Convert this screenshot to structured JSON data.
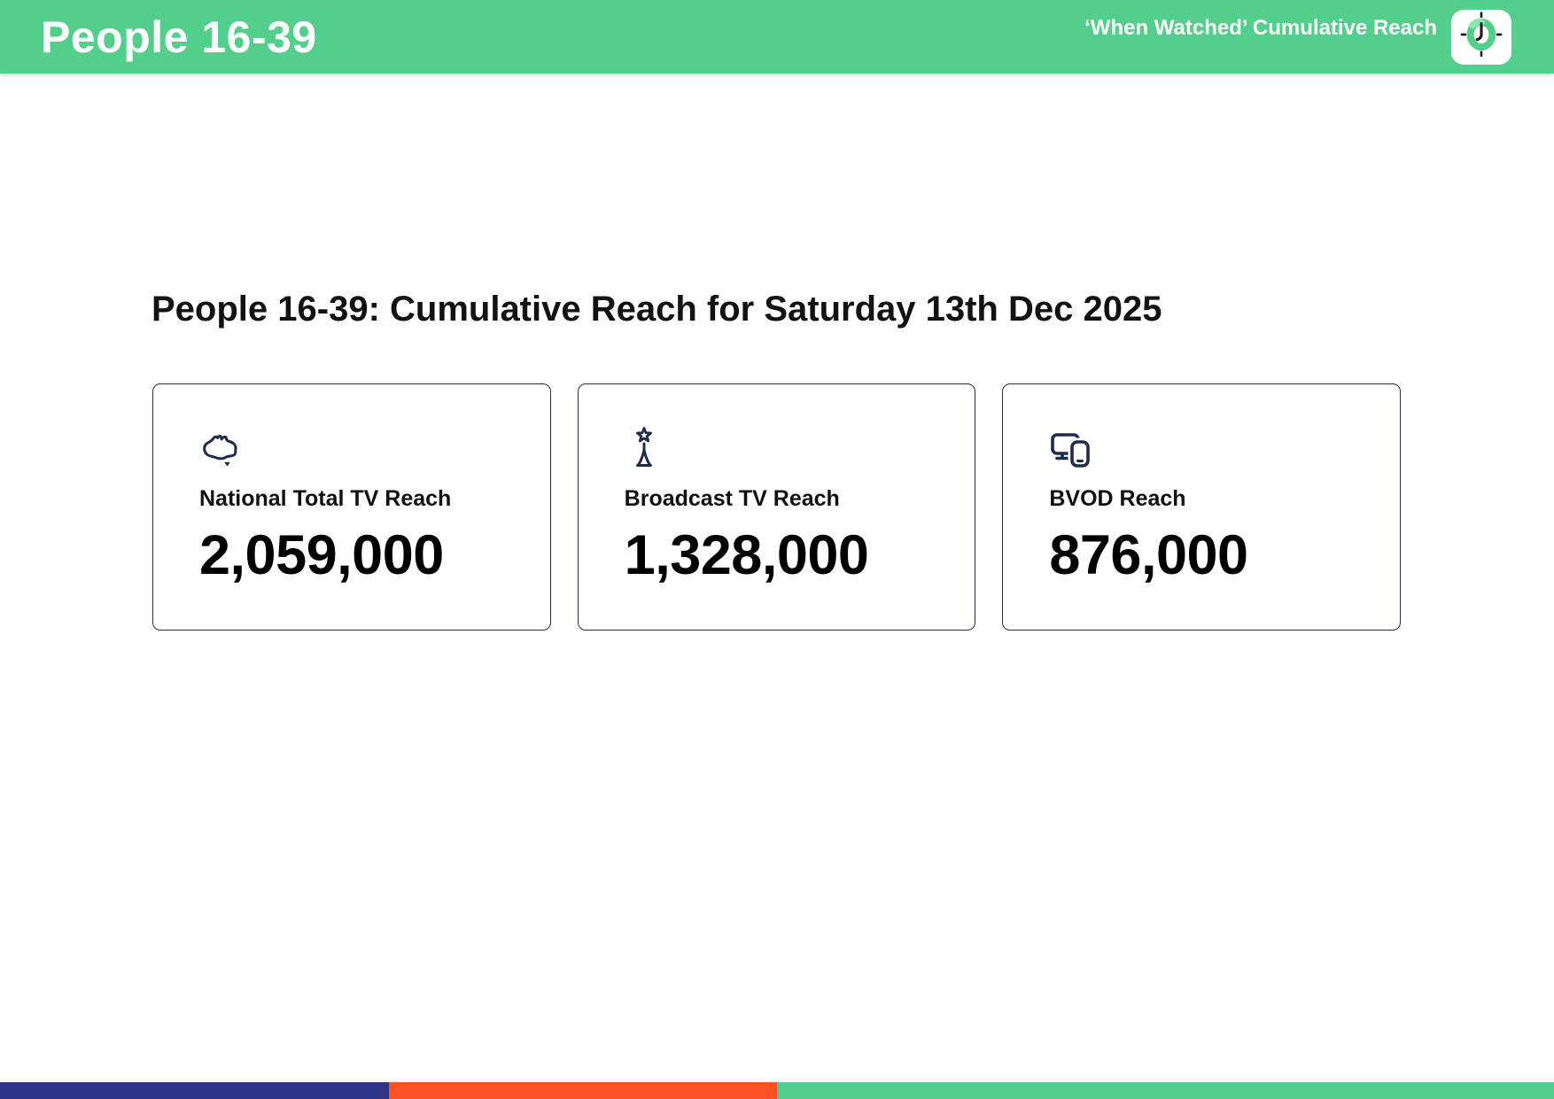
{
  "header": {
    "title": "People 16-39",
    "subtitle": "‘When Watched’ Cumulative Reach",
    "clock_icon": "clock-icon",
    "bg_color": "#53cf8b"
  },
  "main": {
    "heading": "People 16-39: Cumulative Reach for Saturday 13th Dec 2025"
  },
  "cards": [
    {
      "icon": "australia-map-icon",
      "label": "National Total TV Reach",
      "value": "2,059,000"
    },
    {
      "icon": "broadcast-tower-star-icon",
      "label": "Broadcast TV Reach",
      "value": "1,328,000"
    },
    {
      "icon": "tv-and-phone-devices-icon",
      "label": "BVOD Reach",
      "value": "876,000"
    }
  ],
  "footer": {
    "segments": [
      {
        "name": "navy",
        "color": "#2d3589",
        "width_pct": 25
      },
      {
        "name": "orange",
        "color": "#fd5126",
        "width_pct": 25
      },
      {
        "name": "green",
        "color": "#53cf8b",
        "width_pct": 50
      }
    ]
  },
  "colors": {
    "header_green": "#53cf8b",
    "card_border_navy": "#22304a",
    "icon_navy": "#1e2b4d"
  }
}
